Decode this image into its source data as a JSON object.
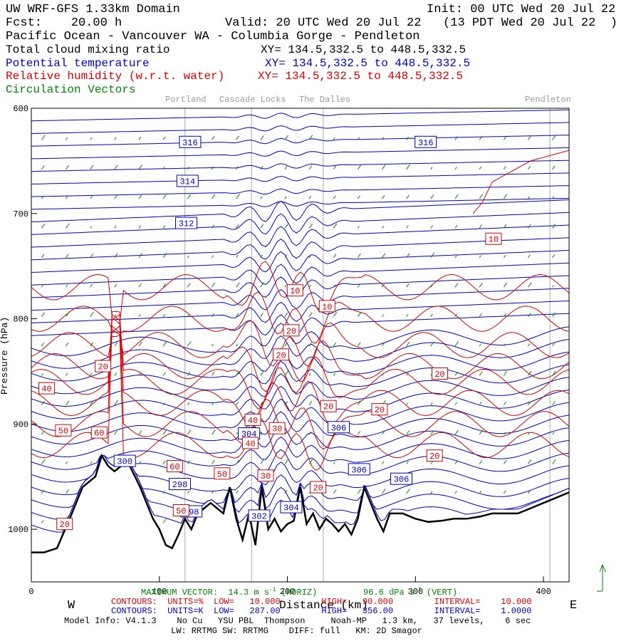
{
  "header": {
    "title": "UW WRF-GFS 1.33km Domain",
    "init": "Init: 00 UTC Wed 20 Jul 22",
    "fcst": "Fcst:    20.00 h",
    "valid": "Valid: 20 UTC Wed 20 Jul 22   (13 PDT Wed 20 Jul 22  )",
    "region": "Pacific Ocean - Vancouver WA - Columbia Gorge - Pendleton"
  },
  "fields": [
    {
      "label": "Total cloud mixing ratio",
      "xy": "XY= 134.5,332.5 to 448.5,332.5",
      "color": "#000000"
    },
    {
      "label": "Potential temperature",
      "xy": "XY= 134.5,332.5 to 448.5,332.5",
      "color": "#0000cc"
    },
    {
      "label": "Relative humidity (w.r.t. water)",
      "xy": "XY= 134.5,332.5 to 448.5,332.5",
      "color": "#dd0000"
    },
    {
      "label": "Circulation Vectors",
      "xy": "",
      "color": "#008800"
    }
  ],
  "locations": [
    "Portland",
    "Cascade Locks",
    "The Dalles",
    "Pendleton"
  ],
  "chart_data": {
    "type": "line",
    "title": "",
    "xlabel": "Distance (km)",
    "ylabel": "Pressure (hPa)",
    "x_ticks": [
      "0",
      "100",
      "200",
      "300",
      "400"
    ],
    "y_ticks": [
      "600",
      "700",
      "800",
      "900",
      "1000"
    ],
    "xlim": [
      0,
      420
    ],
    "ylim": [
      1050,
      600
    ],
    "direction_left": "W",
    "direction_right": "E",
    "location_km": [
      120,
      172,
      228,
      405
    ],
    "terrain": {
      "x": [
        0,
        10,
        20,
        30,
        40,
        50,
        55,
        60,
        65,
        75,
        85,
        95,
        100,
        105,
        110,
        115,
        120,
        125,
        130,
        140,
        150,
        155,
        160,
        165,
        170,
        175,
        180,
        185,
        190,
        195,
        200,
        205,
        210,
        215,
        220,
        225,
        230,
        235,
        240,
        245,
        250,
        255,
        260,
        265,
        270,
        275,
        280,
        290,
        300,
        310,
        320,
        330,
        340,
        350,
        360,
        370,
        380,
        390,
        400,
        410,
        420
      ],
      "p": [
        1022,
        1022,
        1018,
        990,
        960,
        950,
        930,
        940,
        945,
        935,
        960,
        990,
        1000,
        1015,
        1018,
        1005,
        990,
        1000,
        985,
        975,
        985,
        960,
        990,
        1010,
        985,
        1015,
        960,
        1000,
        990,
        1002,
        995,
        992,
        960,
        995,
        985,
        1000,
        990,
        995,
        1002,
        995,
        1005,
        990,
        960,
        975,
        990,
        1002,
        985,
        985,
        990,
        993,
        992,
        990,
        990,
        988,
        985,
        985,
        985,
        980,
        975,
        970,
        965
      ]
    },
    "theta_labels": [
      {
        "value": "316",
        "x": 124,
        "p": 632
      },
      {
        "value": "316",
        "x": 308,
        "p": 632
      },
      {
        "value": "314",
        "x": 122,
        "p": 669
      },
      {
        "value": "312",
        "x": 121,
        "p": 709
      },
      {
        "value": "300",
        "x": 73,
        "p": 935
      },
      {
        "value": "298",
        "x": 116,
        "p": 957
      },
      {
        "value": "298",
        "x": 125,
        "p": 983
      },
      {
        "value": "304",
        "x": 170,
        "p": 909
      },
      {
        "value": "302",
        "x": 178,
        "p": 987
      },
      {
        "value": "304",
        "x": 203,
        "p": 979
      },
      {
        "value": "306",
        "x": 240,
        "p": 903
      },
      {
        "value": "306",
        "x": 256,
        "p": 943
      },
      {
        "value": "306",
        "x": 289,
        "p": 952
      }
    ],
    "rh_labels": [
      {
        "value": "10",
        "x": 361,
        "p": 724
      },
      {
        "value": "10",
        "x": 206,
        "p": 773
      },
      {
        "value": "10",
        "x": 231,
        "p": 788
      },
      {
        "value": "20",
        "x": 203,
        "p": 811
      },
      {
        "value": "20",
        "x": 195,
        "p": 834
      },
      {
        "value": "20",
        "x": 319,
        "p": 852
      },
      {
        "value": "20",
        "x": 56,
        "p": 845
      },
      {
        "value": "40",
        "x": 12,
        "p": 866
      },
      {
        "value": "20",
        "x": 232,
        "p": 883
      },
      {
        "value": "20",
        "x": 272,
        "p": 886
      },
      {
        "value": "40",
        "x": 173,
        "p": 896
      },
      {
        "value": "30",
        "x": 192,
        "p": 904
      },
      {
        "value": "40",
        "x": 171,
        "p": 918
      },
      {
        "value": "50",
        "x": 25,
        "p": 906
      },
      {
        "value": "60",
        "x": 53,
        "p": 908
      },
      {
        "value": "20",
        "x": 315,
        "p": 930
      },
      {
        "value": "60",
        "x": 112,
        "p": 940
      },
      {
        "value": "50",
        "x": 149,
        "p": 947
      },
      {
        "value": "30",
        "x": 183,
        "p": 949
      },
      {
        "value": "20",
        "x": 224,
        "p": 960
      },
      {
        "value": "50",
        "x": 117,
        "p": 982
      },
      {
        "value": "20",
        "x": 26,
        "p": 995
      }
    ]
  },
  "footer": {
    "max_vector": "MAXIMUM VECTOR:  14.3 m s",
    "max_vector_tail": " (HORIZ)         96.6 dPa s",
    "vert_tail": " (VERT)",
    "rh_line": "CONTOURS:  UNITS=%  LOW=   10.000        HIGH=   90.000        INTERVAL=    10.000",
    "theta_line": "CONTOURS:  UNITS=K  LOW=   287.00        HIGH=   356.00        INTERVAL=    1.0000",
    "model_info": "Model Info: V4.1.3    No Cu   YSU PBL  Thompson     Noah-MP   1.3 km,   37 levels,    6 sec",
    "model_info2": "LW: RRTMG SW: RRTMG    DIFF: full   KM: 2D Smagor"
  },
  "colors": {
    "theta": "#0000cc",
    "rh": "#dd0000",
    "wind": "#008800",
    "terrain": "#000000",
    "location_line": "#aaaaaa"
  }
}
